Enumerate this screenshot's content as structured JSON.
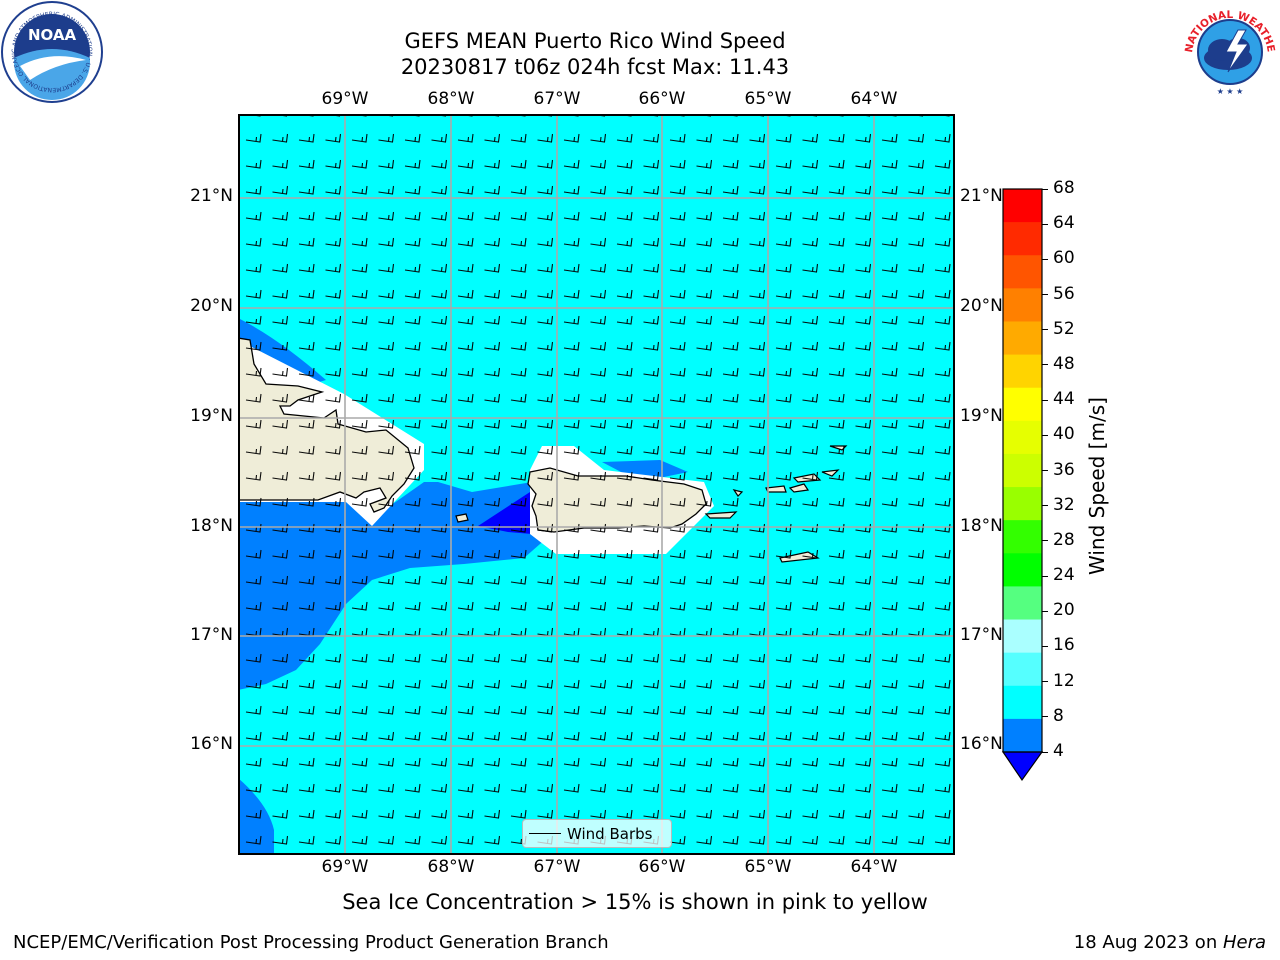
{
  "title": {
    "line1": "GEFS MEAN Puerto Rico Wind Speed",
    "line2": "20230817 t06z 024h fcst   Max: 11.43"
  },
  "logos": {
    "noaa_text": "NOAA",
    "noaa_ring": "NATIONAL OCEANIC AND ATMOSPHERIC ADMINISTRATION · U.S. DEPARTMENT OF COMMERCE",
    "nws_ring": "NATIONAL WEATHER SERVICE"
  },
  "map": {
    "lon_labels": [
      "69°W",
      "68°W",
      "67°W",
      "66°W",
      "65°W",
      "64°W"
    ],
    "lat_labels": [
      "21°N",
      "20°N",
      "19°N",
      "18°N",
      "17°N",
      "16°N"
    ],
    "colors": {
      "cyan": "#00ffff",
      "blue": "#0080ff",
      "dark_blue": "#0000ff",
      "land": "#efedd8",
      "grid": "#aaaaaa"
    },
    "legend_label": "Wind Barbs"
  },
  "colorbar": {
    "ticks": [
      "68",
      "64",
      "60",
      "56",
      "52",
      "48",
      "44",
      "40",
      "36",
      "32",
      "28",
      "24",
      "20",
      "16",
      "12",
      "8",
      "4"
    ],
    "colors": [
      "#ff0000",
      "#ff2a00",
      "#ff5500",
      "#ff8000",
      "#ffaa00",
      "#ffd400",
      "#ffff00",
      "#e6ff00",
      "#ccff00",
      "#99ff00",
      "#33ff00",
      "#00ff00",
      "#55ff80",
      "#aaffff",
      "#55ffff",
      "#00ffff",
      "#0080ff"
    ],
    "extend_color": "#0000ff",
    "label": "Wind Speed [m/s]"
  },
  "subtitle": "Sea Ice Concentration > 15% is shown in pink to yellow",
  "footer": {
    "left": "NCEP/EMC/Verification Post Processing Product Generation Branch",
    "date": "18 Aug 2023 on ",
    "machine": "Hera"
  }
}
